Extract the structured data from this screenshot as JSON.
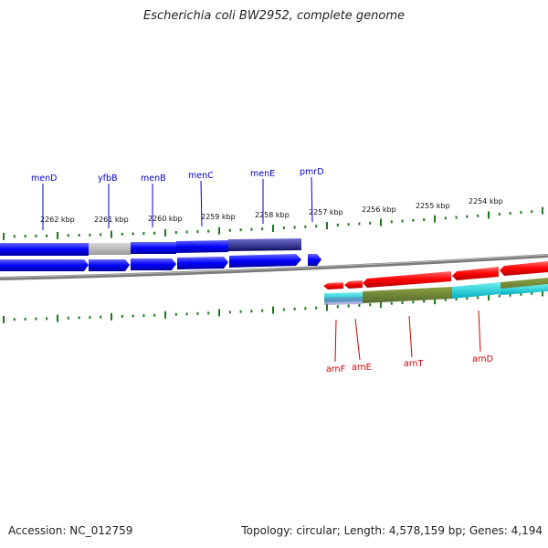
{
  "title": "Escherichia coli BW2952, complete genome",
  "accession": "Accession: NC_012759",
  "topology": "Topology: circular; Length: 4,578,159 bp; Genes: 4,194",
  "colors": {
    "forward_gene": "#0000ff",
    "reverse_gene": "#ff0000",
    "gene_label_forward": "#0000cc",
    "gene_label_reverse": "#cc0000",
    "tick": "#1a7a1a",
    "backbone": "#808080"
  },
  "ticks": [
    "2262 kbp",
    "2261 kbp",
    "2260 kbp",
    "2259 kbp",
    "2258 kbp",
    "2257 kbp",
    "2256 kbp",
    "2255 kbp",
    "2254 kbp"
  ],
  "genes_top": [
    "menD",
    "yfbB",
    "menB",
    "menC",
    "menE",
    "pmrD"
  ],
  "genes_bottom": [
    "arnF",
    "arnE",
    "arnT",
    "arnD"
  ]
}
